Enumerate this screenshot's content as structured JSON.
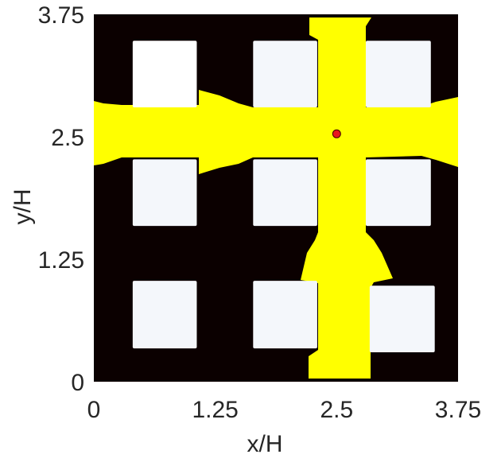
{
  "chart_data": {
    "type": "heatmap",
    "xlabel": "x/H",
    "ylabel": "y/H",
    "xlim": [
      0,
      3.75
    ],
    "ylim": [
      0,
      3.75
    ],
    "xticks": [
      "0",
      "1.25",
      "2.5",
      "3.75"
    ],
    "yticks": [
      "0",
      "1.25",
      "2.5",
      "3.75"
    ],
    "grid": false,
    "colors": {
      "background": "#0b0000",
      "obstacle": "#f4f7fb",
      "obstacle_white": "#ffffff",
      "plume": "#ffff00",
      "source": "#e8181c",
      "axis": "#262626"
    },
    "obstacles": [
      {
        "x0": 0.4,
        "x1": 1.06,
        "y0": 2.8,
        "y1": 3.48
      },
      {
        "x0": 1.64,
        "x1": 2.3,
        "y0": 2.8,
        "y1": 3.48
      },
      {
        "x0": 2.8,
        "x1": 3.47,
        "y0": 2.8,
        "y1": 3.48
      },
      {
        "x0": 0.4,
        "x1": 1.06,
        "y0": 1.59,
        "y1": 2.27
      },
      {
        "x0": 1.64,
        "x1": 2.3,
        "y0": 1.59,
        "y1": 2.27
      },
      {
        "x0": 2.8,
        "x1": 3.47,
        "y0": 1.59,
        "y1": 2.27
      },
      {
        "x0": 0.4,
        "x1": 1.06,
        "y0": 0.34,
        "y1": 1.03
      },
      {
        "x0": 1.64,
        "x1": 2.3,
        "y0": 0.34,
        "y1": 1.03
      },
      {
        "x0": 2.84,
        "x1": 3.51,
        "y0": 0.3,
        "y1": 0.98
      }
    ],
    "source_point": {
      "x": 2.5,
      "y": 2.53
    }
  }
}
